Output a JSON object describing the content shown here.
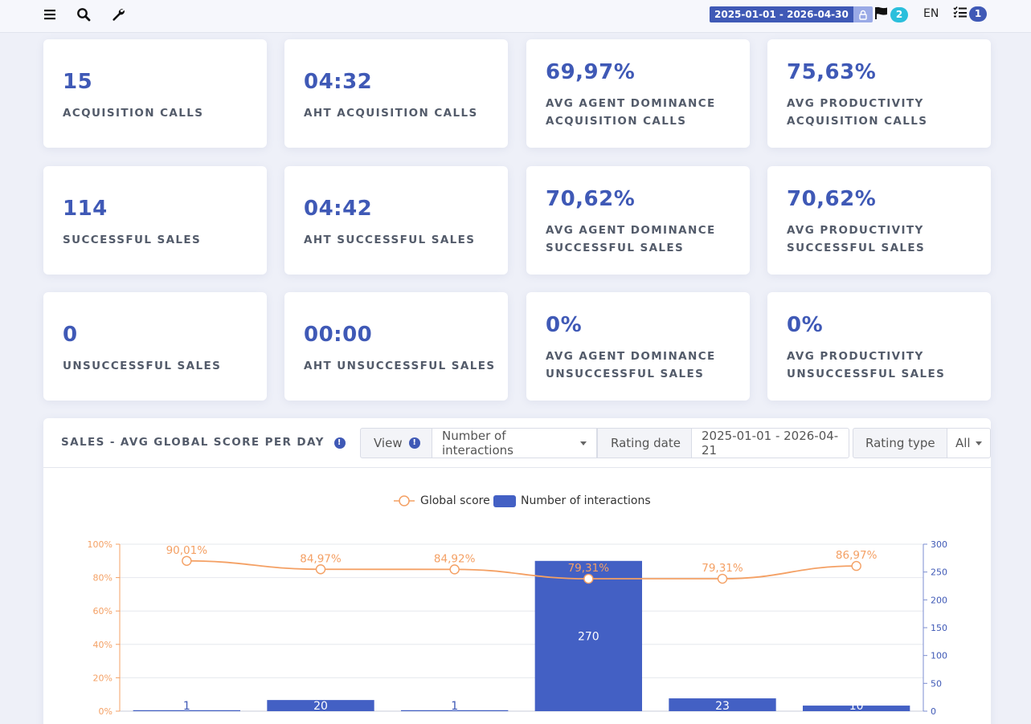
{
  "topbar": {
    "date_range": "2025-01-01 - 2026-04-30",
    "flag_count": "2",
    "language": "EN",
    "tasks_count": "1"
  },
  "kpis": [
    {
      "value": "15",
      "label1": "ACQUISITION CALLS",
      "label2": ""
    },
    {
      "value": "04:32",
      "label1": "AHT ACQUISITION CALLS",
      "label2": ""
    },
    {
      "value": "69,97%",
      "label1": "AVG AGENT DOMINANCE",
      "label2": "ACQUISITION CALLS"
    },
    {
      "value": "75,63%",
      "label1": "AVG PRODUCTIVITY",
      "label2": "ACQUISITION CALLS"
    },
    {
      "value": "114",
      "label1": "SUCCESSFUL SALES",
      "label2": ""
    },
    {
      "value": "04:42",
      "label1": "AHT SUCCESSFUL SALES",
      "label2": ""
    },
    {
      "value": "70,62%",
      "label1": "AVG AGENT DOMINANCE",
      "label2": "SUCCESSFUL SALES"
    },
    {
      "value": "70,62%",
      "label1": "AVG PRODUCTIVITY",
      "label2": "SUCCESSFUL SALES"
    },
    {
      "value": "0",
      "label1": "UNSUCCESSFUL SALES",
      "label2": ""
    },
    {
      "value": "00:00",
      "label1": "AHT UNSUCCESSFUL SALES",
      "label2": ""
    },
    {
      "value": "0%",
      "label1": "AVG AGENT DOMINANCE",
      "label2": "UNSUCCESSFUL SALES"
    },
    {
      "value": "0%",
      "label1": "AVG PRODUCTIVITY",
      "label2": "UNSUCCESSFUL SALES"
    }
  ],
  "panel": {
    "title": "SALES - AVG GLOBAL SCORE PER DAY",
    "view_label": "View",
    "view_value": "Number of interactions",
    "rating_date_label": "Rating date",
    "rating_date_value": "2025-01-01 - 2026-04-21",
    "rating_type_label": "Rating type",
    "rating_type_value": "All"
  },
  "colors": {
    "accent": "#3f59b6",
    "bar": "#4360c4",
    "line": "#f4a064",
    "badge_cyan": "#2bbfdc"
  },
  "icons": [
    "menu-icon",
    "search-icon",
    "wrench-icon",
    "lock-icon",
    "flag-icon",
    "tasks-icon",
    "info-icon",
    "caret-down-icon"
  ],
  "chart_data": {
    "type": "bar",
    "series": [
      {
        "name": "Global score",
        "type": "line",
        "axis": "left",
        "values": [
          90.01,
          84.97,
          84.92,
          79.31,
          79.31,
          86.97
        ],
        "labels": [
          "90,01%",
          "84,97%",
          "84,92%",
          "79,31%",
          "79,31%",
          "86,97%"
        ]
      },
      {
        "name": "Number of interactions",
        "type": "bar",
        "axis": "right",
        "values": [
          1,
          20,
          1,
          270,
          23,
          10
        ],
        "labels": [
          "1",
          "20",
          "1",
          "270",
          "23",
          "10"
        ]
      }
    ],
    "y_left": {
      "ylim": [
        0,
        100
      ],
      "ticks": [
        "0%",
        "20%",
        "40%",
        "60%",
        "80%",
        "100%"
      ]
    },
    "y_right": {
      "ylim": [
        0,
        300
      ],
      "ticks": [
        "0",
        "50",
        "100",
        "150",
        "200",
        "250",
        "300"
      ]
    },
    "grid": true,
    "legend_position": "top-center"
  }
}
